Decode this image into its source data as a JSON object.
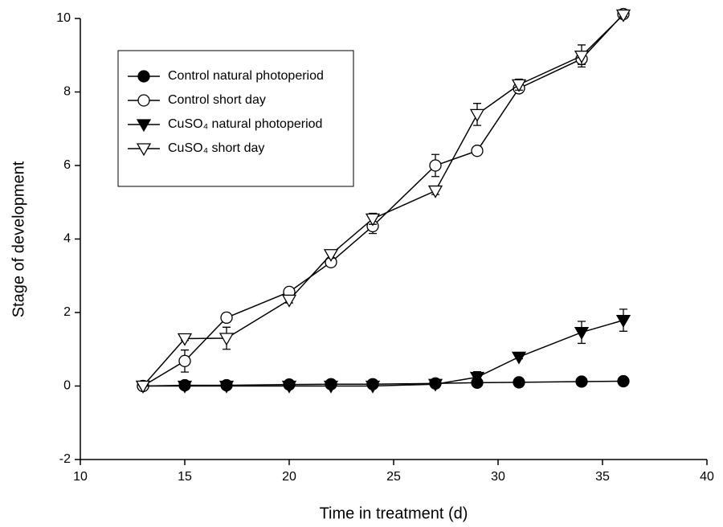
{
  "chart_data": {
    "type": "line",
    "x_label": "Time in treatment (d)",
    "y_label": "Stage of development",
    "x": [
      13,
      15,
      17,
      20,
      22,
      24,
      27,
      29,
      31,
      34,
      36
    ],
    "xlim": [
      10,
      40
    ],
    "xticks": [
      10,
      15,
      20,
      25,
      30,
      35,
      40
    ],
    "ylim": [
      -2,
      10
    ],
    "yticks": [
      -2,
      0,
      2,
      4,
      6,
      8,
      10
    ],
    "legend": "top-left",
    "series": [
      {
        "name": "Control natural photoperiod",
        "color": "#000000",
        "marker": "circle",
        "filled": true,
        "values": [
          0,
          0.02,
          0.02,
          0.04,
          0.05,
          0.05,
          0.07,
          0.09,
          0.1,
          0.12,
          0.13
        ],
        "errors": [
          0,
          0.02,
          0.02,
          0.02,
          0.02,
          0.02,
          0.02,
          0.02,
          0.02,
          0.02,
          0.02
        ]
      },
      {
        "name": "Control short day",
        "color": "#000000",
        "marker": "circle",
        "filled": false,
        "values": [
          0,
          0.68,
          1.86,
          2.56,
          3.37,
          4.35,
          6.0,
          6.4,
          8.1,
          8.9,
          10.12
        ],
        "errors": [
          0,
          0.3,
          0.12,
          0.1,
          0.08,
          0.2,
          0.3,
          0.05,
          0.1,
          0.15,
          0.05
        ]
      },
      {
        "name": "CuSO₄ natural photoperiod",
        "color": "#000000",
        "marker": "triangle-down",
        "filled": true,
        "values": [
          0,
          0,
          0,
          0,
          0,
          0,
          0.05,
          0.24,
          0.79,
          1.46,
          1.79
        ],
        "errors": [
          0,
          0,
          0,
          0,
          0,
          0,
          0,
          0.15,
          0.05,
          0.3,
          0.3
        ]
      },
      {
        "name": "CuSO₄ short day",
        "color": "#000000",
        "marker": "triangle-down",
        "filled": false,
        "values": [
          0,
          1.29,
          1.3,
          2.34,
          3.58,
          4.55,
          5.31,
          7.39,
          8.2,
          8.98,
          10.1
        ],
        "errors": [
          0,
          0.05,
          0.3,
          0.08,
          0.1,
          0.15,
          0.1,
          0.3,
          0.15,
          0.3,
          0.05
        ]
      }
    ]
  }
}
